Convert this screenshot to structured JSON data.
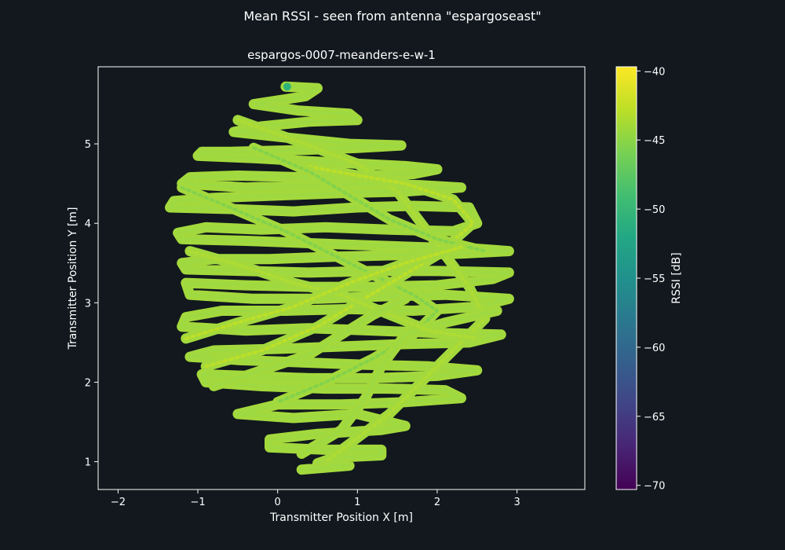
{
  "figure": {
    "suptitle": "Mean RSSI - seen from antenna \"espargoseast\"",
    "background": "#12181e",
    "foreground": "#ffffff"
  },
  "chart_data": {
    "type": "scatter",
    "title": "espargos-0007-meanders-e-w-1",
    "xlabel": "Transmitter Position X [m]",
    "ylabel": "Transmitter Position Y [m]",
    "xlim": [
      -2.25,
      3.85
    ],
    "ylim": [
      0.65,
      5.97
    ],
    "xticks": [
      -2,
      -1,
      0,
      1,
      2,
      3
    ],
    "xtick_labels": [
      "−2",
      "−1",
      "0",
      "1",
      "2",
      "3"
    ],
    "yticks": [
      1,
      2,
      3,
      4,
      5
    ],
    "ytick_labels": [
      "1",
      "2",
      "3",
      "4",
      "5"
    ],
    "grid": false,
    "colormap": "viridis",
    "marker_color": "#a3d93d",
    "colorbar": {
      "label": "RSSI [dB]",
      "range": [
        -70.3,
        -39.7
      ],
      "ticks": [
        -40,
        -45,
        -50,
        -55,
        -60,
        -65,
        -70
      ],
      "tick_labels": [
        "−40",
        "−45",
        "−50",
        "−55",
        "−60",
        "−65",
        "−70"
      ]
    },
    "series": [
      {
        "values": [
          {
            "path": [
              [
                0.1,
                5.72
              ],
              [
                0.5,
                5.7
              ],
              [
                0.35,
                5.6
              ],
              [
                -0.3,
                5.5
              ],
              [
                0.25,
                5.42
              ],
              [
                0.9,
                5.38
              ],
              [
                1.0,
                5.3
              ],
              [
                0.4,
                5.28
              ],
              [
                -0.2,
                5.22
              ],
              [
                -0.55,
                5.15
              ],
              [
                0.1,
                5.08
              ],
              [
                0.9,
                5.0
              ],
              [
                1.55,
                4.98
              ],
              [
                1.0,
                4.95
              ],
              [
                0.2,
                4.92
              ],
              [
                -0.6,
                4.9
              ],
              [
                -0.95,
                4.9
              ],
              [
                -1.0,
                4.85
              ],
              [
                -0.3,
                4.82
              ],
              [
                0.4,
                4.78
              ],
              [
                1.0,
                4.75
              ],
              [
                1.6,
                4.72
              ],
              [
                2.0,
                4.68
              ],
              [
                1.7,
                4.62
              ],
              [
                1.0,
                4.6
              ],
              [
                0.3,
                4.58
              ],
              [
                -0.5,
                4.6
              ],
              [
                -1.1,
                4.58
              ],
              [
                -1.2,
                4.5
              ],
              [
                -0.4,
                4.45
              ],
              [
                0.4,
                4.48
              ],
              [
                1.2,
                4.5
              ],
              [
                1.8,
                4.48
              ],
              [
                2.3,
                4.45
              ],
              [
                1.6,
                4.4
              ],
              [
                0.8,
                4.38
              ],
              [
                0.0,
                4.35
              ],
              [
                -0.8,
                4.32
              ],
              [
                -1.3,
                4.28
              ],
              [
                -1.35,
                4.2
              ],
              [
                -0.6,
                4.18
              ],
              [
                0.2,
                4.15
              ],
              [
                1.0,
                4.2
              ],
              [
                1.7,
                4.22
              ],
              [
                2.4,
                4.2
              ],
              [
                2.5,
                4.0
              ],
              [
                2.2,
                3.9
              ],
              [
                1.4,
                3.92
              ],
              [
                0.6,
                3.95
              ],
              [
                -0.2,
                3.92
              ],
              [
                -0.9,
                3.95
              ],
              [
                -1.25,
                3.88
              ],
              [
                -1.2,
                3.8
              ],
              [
                -0.4,
                3.78
              ],
              [
                0.4,
                3.75
              ],
              [
                1.2,
                3.72
              ],
              [
                1.8,
                3.7
              ],
              [
                2.5,
                3.68
              ],
              [
                2.9,
                3.65
              ],
              [
                2.3,
                3.62
              ],
              [
                1.5,
                3.6
              ],
              [
                0.7,
                3.58
              ],
              [
                -0.1,
                3.55
              ],
              [
                -0.8,
                3.55
              ],
              [
                -1.2,
                3.5
              ],
              [
                -1.15,
                3.42
              ],
              [
                -0.4,
                3.4
              ],
              [
                0.4,
                3.38
              ],
              [
                1.2,
                3.4
              ],
              [
                2.0,
                3.4
              ],
              [
                2.9,
                3.38
              ],
              [
                2.7,
                3.3
              ],
              [
                2.0,
                3.22
              ],
              [
                1.2,
                3.2
              ],
              [
                0.4,
                3.2
              ],
              [
                -0.4,
                3.22
              ],
              [
                -1.15,
                3.25
              ],
              [
                -1.1,
                3.1
              ],
              [
                -0.3,
                3.05
              ],
              [
                0.5,
                3.05
              ],
              [
                1.3,
                3.08
              ],
              [
                2.1,
                3.1
              ],
              [
                2.9,
                3.05
              ],
              [
                2.5,
                2.95
              ],
              [
                1.7,
                2.9
              ],
              [
                0.9,
                2.92
              ],
              [
                0.1,
                2.9
              ],
              [
                -0.7,
                2.9
              ],
              [
                -1.15,
                2.82
              ],
              [
                -1.2,
                2.7
              ],
              [
                -0.4,
                2.65
              ],
              [
                0.4,
                2.68
              ],
              [
                1.2,
                2.65
              ],
              [
                2.0,
                2.62
              ],
              [
                2.8,
                2.6
              ],
              [
                2.4,
                2.5
              ],
              [
                1.6,
                2.48
              ],
              [
                0.8,
                2.45
              ],
              [
                0.0,
                2.42
              ],
              [
                -0.8,
                2.4
              ],
              [
                -1.1,
                2.32
              ],
              [
                -0.5,
                2.28
              ],
              [
                0.3,
                2.25
              ],
              [
                1.1,
                2.22
              ],
              [
                1.9,
                2.2
              ],
              [
                2.5,
                2.15
              ],
              [
                2.0,
                2.08
              ],
              [
                1.2,
                2.05
              ],
              [
                0.4,
                2.05
              ],
              [
                -0.4,
                2.08
              ],
              [
                -0.95,
                2.1
              ],
              [
                -0.9,
                2.0
              ],
              [
                -0.2,
                1.95
              ],
              [
                0.6,
                1.92
              ],
              [
                1.4,
                1.92
              ],
              [
                2.1,
                1.9
              ],
              [
                2.3,
                1.8
              ],
              [
                1.6,
                1.75
              ],
              [
                0.8,
                1.72
              ],
              [
                0.0,
                1.72
              ],
              [
                -0.5,
                1.6
              ],
              [
                0.2,
                1.55
              ],
              [
                1.0,
                1.6
              ],
              [
                1.6,
                1.45
              ],
              [
                1.3,
                1.4
              ],
              [
                0.5,
                1.35
              ],
              [
                -0.1,
                1.28
              ],
              [
                -0.1,
                1.18
              ],
              [
                0.6,
                1.15
              ],
              [
                1.3,
                1.15
              ],
              [
                1.3,
                1.08
              ],
              [
                0.7,
                1.05
              ],
              [
                0.5,
                0.98
              ],
              [
                0.9,
                0.95
              ],
              [
                0.3,
                0.9
              ]
            ]
          },
          {
            "path": [
              [
                -0.5,
                5.3
              ],
              [
                0.2,
                5.05
              ],
              [
                1.0,
                4.75
              ],
              [
                1.5,
                4.4
              ],
              [
                1.8,
                4.0
              ],
              [
                2.1,
                3.6
              ],
              [
                2.4,
                3.2
              ],
              [
                2.6,
                2.8
              ],
              [
                2.2,
                2.4
              ],
              [
                1.8,
                2.0
              ],
              [
                1.4,
                1.6
              ],
              [
                1.0,
                1.3
              ],
              [
                0.6,
                1.0
              ]
            ]
          },
          {
            "path": [
              [
                -1.2,
                4.45
              ],
              [
                -0.6,
                4.2
              ],
              [
                0.1,
                3.9
              ],
              [
                0.7,
                3.6
              ],
              [
                1.2,
                3.35
              ],
              [
                1.7,
                3.1
              ],
              [
                2.0,
                2.9
              ],
              [
                1.7,
                2.6
              ],
              [
                1.2,
                2.3
              ],
              [
                0.6,
                2.0
              ],
              [
                0.0,
                1.75
              ]
            ]
          },
          {
            "path": [
              [
                -0.9,
                2.2
              ],
              [
                -0.2,
                2.4
              ],
              [
                0.5,
                2.7
              ],
              [
                1.0,
                3.0
              ],
              [
                1.5,
                3.3
              ],
              [
                2.0,
                3.6
              ],
              [
                2.45,
                4.0
              ],
              [
                2.2,
                4.3
              ],
              [
                1.6,
                4.5
              ],
              [
                0.9,
                4.62
              ],
              [
                0.2,
                4.75
              ]
            ]
          },
          {
            "path": [
              [
                0.3,
                1.1
              ],
              [
                0.8,
                1.4
              ],
              [
                1.1,
                1.8
              ],
              [
                1.3,
                2.2
              ],
              [
                1.6,
                2.6
              ],
              [
                2.1,
                2.75
              ],
              [
                2.75,
                2.9
              ]
            ]
          },
          {
            "path": [
              [
                -1.1,
                3.65
              ],
              [
                -0.4,
                3.45
              ],
              [
                0.2,
                3.25
              ],
              [
                0.8,
                3.1
              ],
              [
                1.4,
                2.85
              ],
              [
                1.9,
                2.65
              ],
              [
                2.5,
                2.55
              ]
            ]
          },
          {
            "path": [
              [
                -0.3,
                4.95
              ],
              [
                0.4,
                4.65
              ],
              [
                0.9,
                4.35
              ],
              [
                1.4,
                4.05
              ],
              [
                2.0,
                3.8
              ],
              [
                2.6,
                3.65
              ]
            ]
          },
          {
            "path": [
              [
                -1.15,
                2.55
              ],
              [
                -0.5,
                2.75
              ],
              [
                0.2,
                2.95
              ],
              [
                0.9,
                3.25
              ],
              [
                1.6,
                3.5
              ],
              [
                2.3,
                3.7
              ]
            ]
          },
          {
            "path": [
              [
                -0.8,
                1.95
              ],
              [
                -0.2,
                2.15
              ],
              [
                0.4,
                2.35
              ],
              [
                0.8,
                2.6
              ],
              [
                1.2,
                2.85
              ],
              [
                1.6,
                3.05
              ]
            ]
          }
        ]
      }
    ],
    "highlight_point": {
      "x": 0.12,
      "y": 5.72,
      "rssi": -51
    }
  }
}
